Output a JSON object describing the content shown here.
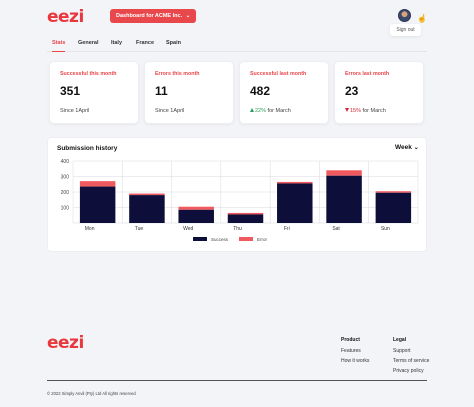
{
  "header": {
    "logo": "eezi",
    "dashboard_button": "Dashboard for ACME Inc.",
    "dashboard_chevron": "⌄",
    "sign_out": "Sign out"
  },
  "tabs": [
    "Stats",
    "General",
    "Italy",
    "France",
    "Spain"
  ],
  "stats": [
    {
      "label": "Successful this month",
      "value": "351",
      "sub": "Since 1April"
    },
    {
      "label": "Errors this month",
      "value": "11",
      "sub": "Since 1April"
    },
    {
      "label": "Successful last month",
      "value": "482",
      "delta": "22%",
      "sub": "for March",
      "trend": "up"
    },
    {
      "label": "Errors last month",
      "value": "23",
      "delta": "15%",
      "sub": "for March",
      "trend": "down"
    }
  ],
  "chart": {
    "title": "Submission history",
    "period": "Week",
    "colors": {
      "success": "#0e0e3a",
      "error": "#f05a5f"
    }
  },
  "chart_data": {
    "type": "bar",
    "stacked": true,
    "categories": [
      "Mon",
      "Tue",
      "Wed",
      "Thu",
      "Fri",
      "Sat",
      "Sun"
    ],
    "series": [
      {
        "name": "Success",
        "values": [
          235,
          180,
          85,
          55,
          255,
          305,
          195
        ]
      },
      {
        "name": "Error",
        "values": [
          35,
          10,
          20,
          10,
          10,
          35,
          10
        ]
      }
    ],
    "ylim": [
      0,
      400
    ],
    "yticks": [
      100,
      200,
      300,
      400
    ],
    "grid": true,
    "legend": "bottom"
  },
  "footer": {
    "logo": "eezi",
    "product_heading": "Product",
    "product_links": [
      "Features",
      "How it works"
    ],
    "legal_heading": "Legal",
    "legal_links": [
      "Support",
      "Terms of service",
      "Privacy policy"
    ],
    "copyright": "© 2022 Simply Anvil (Pty) Ltd All rights reserved"
  }
}
